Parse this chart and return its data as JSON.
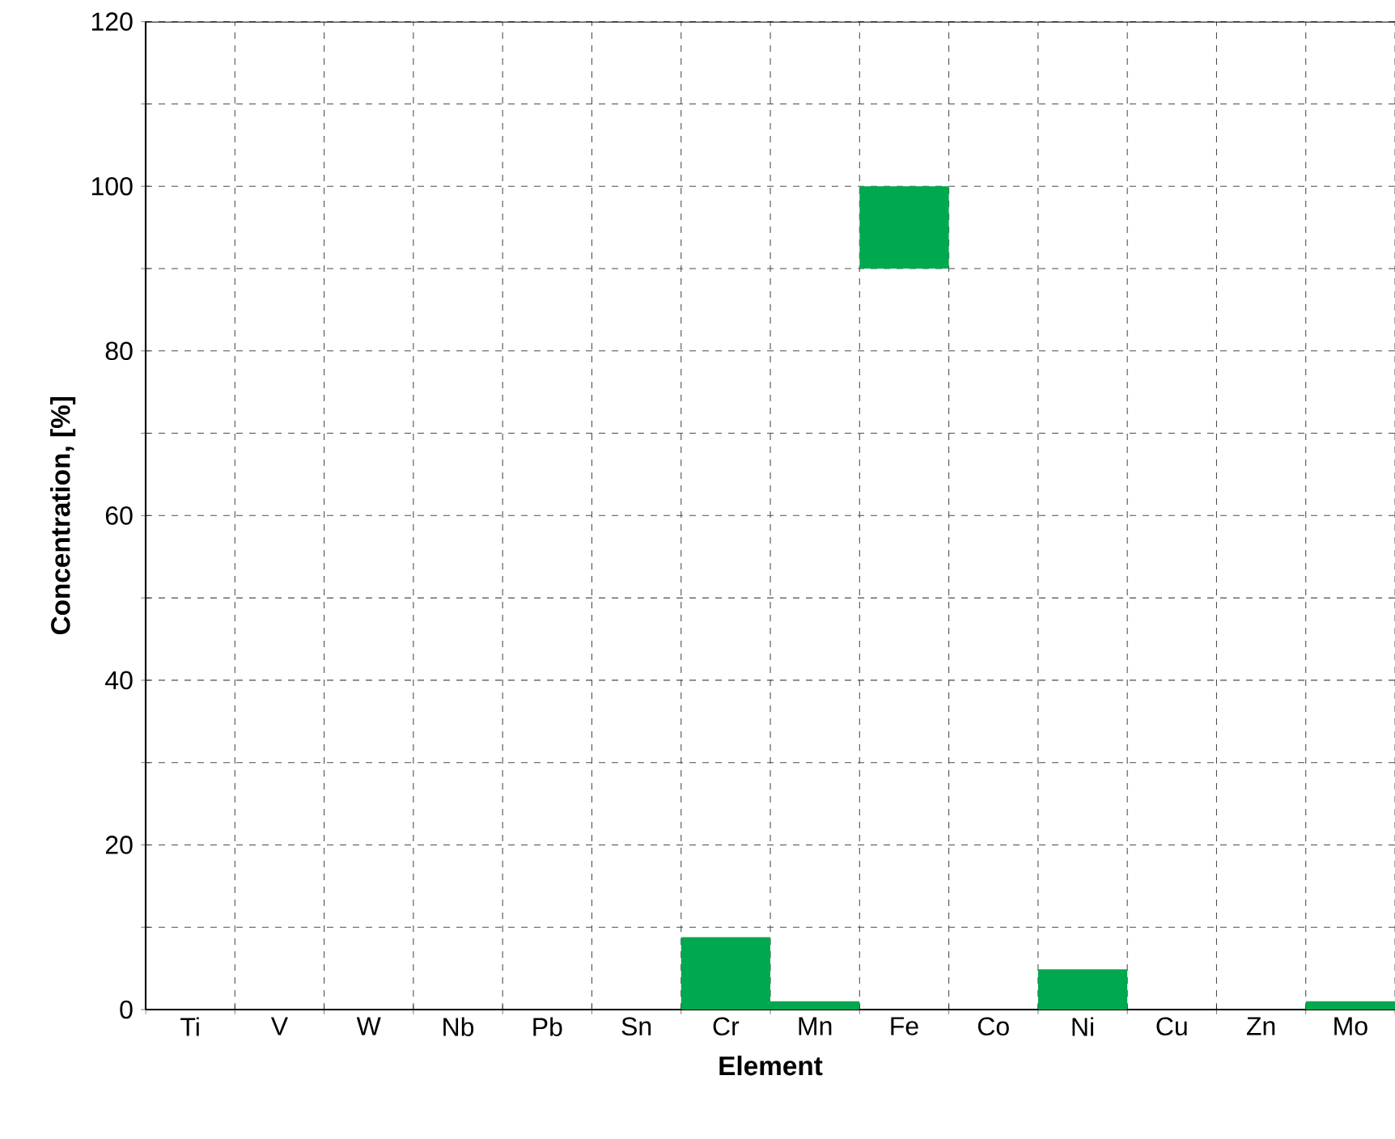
{
  "chart_data": {
    "type": "bar",
    "xlabel": "Element",
    "ylabel": "Concentration, [%]",
    "categories": [
      "Ti",
      "V",
      "W",
      "Nb",
      "Pb",
      "Sn",
      "Cr",
      "Mn",
      "Fe",
      "Co",
      "Ni",
      "Cu",
      "Zn",
      "Mo"
    ],
    "values": [
      0,
      0,
      0,
      0,
      0,
      0,
      8.8,
      1,
      10,
      0,
      4.9,
      0,
      0,
      1
    ],
    "base": [
      null,
      null,
      null,
      null,
      null,
      null,
      0,
      0,
      90,
      null,
      0,
      null,
      null,
      0
    ],
    "color": "#00a84f",
    "ylim": [
      0,
      120
    ],
    "yticks": [
      0,
      {
        "value": 10,
        "label": null
      },
      20,
      {
        "value": 30,
        "label": null
      },
      40,
      {
        "value": 50,
        "label": null
      },
      60,
      {
        "value": 70,
        "label": null
      },
      80,
      {
        "value": 90,
        "label": null
      },
      100,
      {
        "value": 110,
        "label": null
      },
      120
    ],
    "grid": true
  }
}
